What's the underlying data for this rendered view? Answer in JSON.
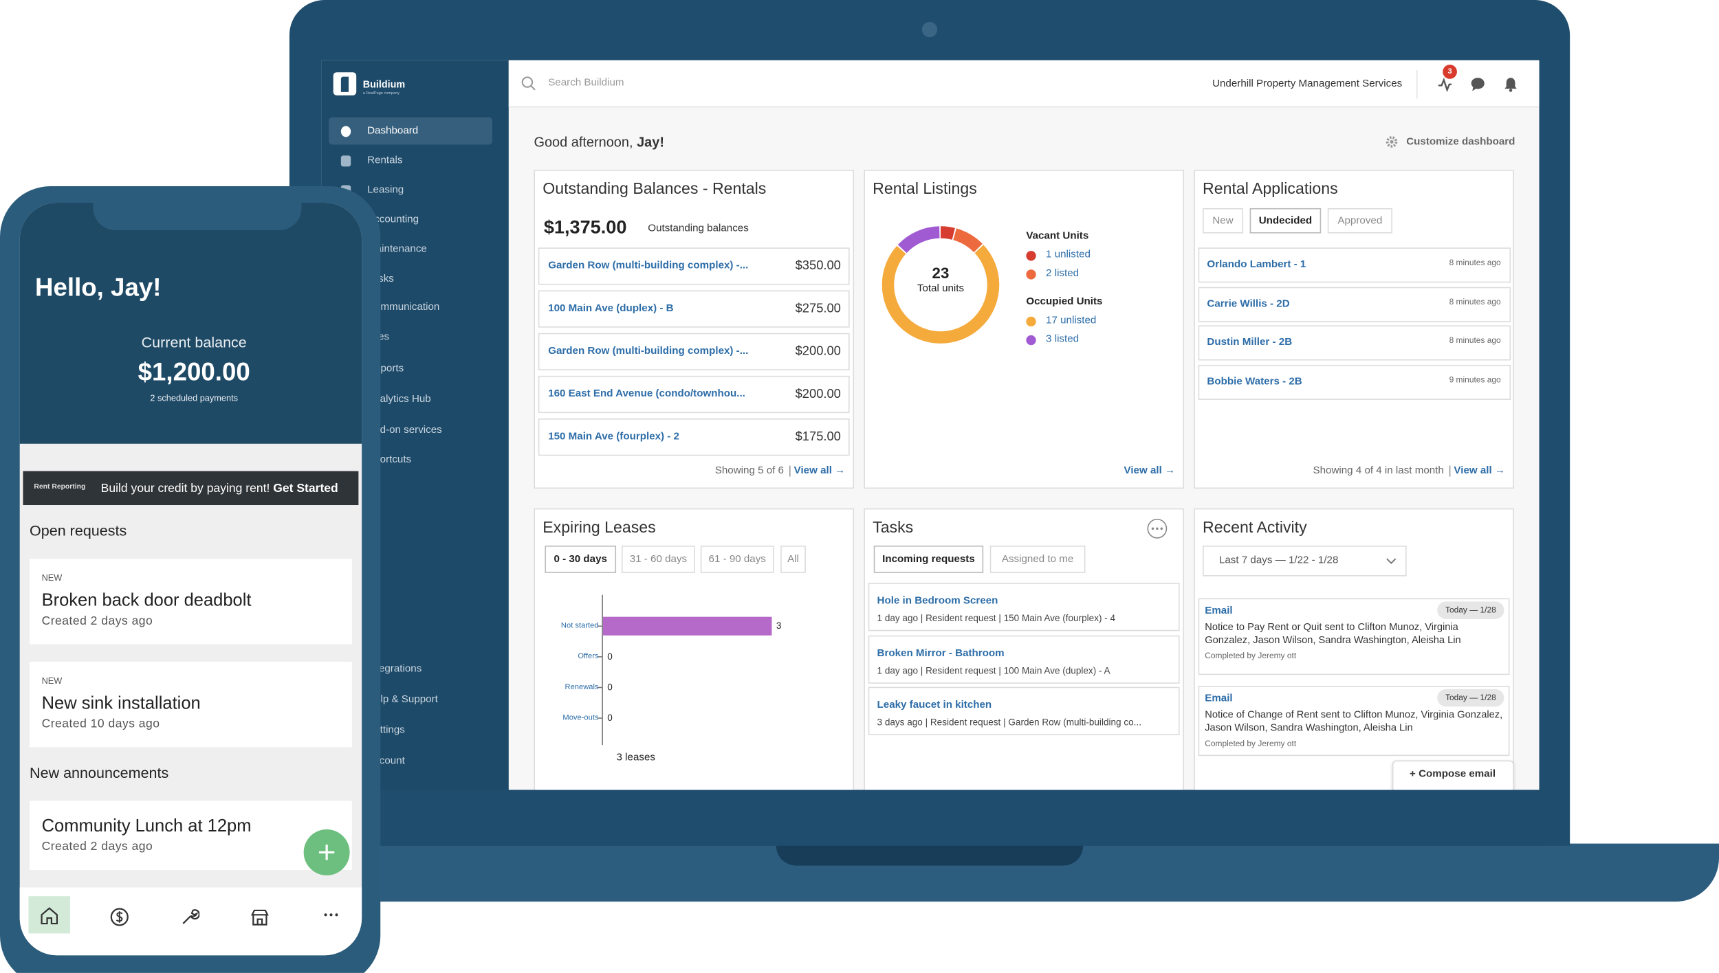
{
  "laptop": {
    "sidebar": {
      "logo": "Buildium",
      "logo_sub": "a RealPage company",
      "nav": [
        "Dashboard",
        "Rentals",
        "Leasing",
        "Accounting",
        "Maintenance",
        "Tasks",
        "Communication",
        "Files",
        "Reports",
        "Analytics Hub",
        "Add-on services",
        "Shortcuts"
      ],
      "nav_bottom": [
        "Integrations",
        "Help & Support",
        "Settings",
        "Account"
      ]
    },
    "header": {
      "search_placeholder": "Search Buildium",
      "company": "Underhill Property Management Services",
      "notification_count": 3
    },
    "greeting": {
      "text": "Good afternoon, ",
      "name": "Jay!"
    },
    "customize": "Customize dashboard",
    "outstanding": {
      "title": "Outstanding Balances - Rentals",
      "total": "$1,375.00",
      "total_label": "Outstanding balances",
      "rows": [
        {
          "name": "Garden Row (multi-building complex) -...",
          "amount": "$350.00"
        },
        {
          "name": "100 Main Ave (duplex) - B",
          "amount": "$275.00"
        },
        {
          "name": "Garden Row (multi-building complex) -...",
          "amount": "$200.00"
        },
        {
          "name": "160 East End Avenue (condo/townhou...",
          "amount": "$200.00"
        },
        {
          "name": "150 Main Ave (fourplex) - 2",
          "amount": "$175.00"
        }
      ],
      "footer": "Showing 5 of 6",
      "link": "View all →"
    },
    "listings": {
      "title": "Rental Listings",
      "total": 23,
      "total_label": "Total units",
      "groups": [
        {
          "name": "Vacant Units",
          "items": [
            {
              "count": 1,
              "label": "unlisted",
              "color": "#d63c2f"
            },
            {
              "count": 2,
              "label": "listed",
              "color": "#ec6a3e"
            }
          ]
        },
        {
          "name": "Occupied Units",
          "items": [
            {
              "count": 17,
              "label": "unlisted",
              "color": "#f5aa3c"
            },
            {
              "count": 3,
              "label": "listed",
              "color": "#a05bd3"
            }
          ]
        }
      ],
      "link": "View all →"
    },
    "applications": {
      "title": "Rental Applications",
      "tabs": [
        "New",
        "Undecided",
        "Approved"
      ],
      "rows": [
        {
          "name": "Orlando Lambert - 1",
          "time": "8 minutes ago"
        },
        {
          "name": "Carrie Willis - 2D",
          "time": "8 minutes ago"
        },
        {
          "name": "Dustin Miller - 2B",
          "time": "8 minutes ago"
        },
        {
          "name": "Bobbie Waters - 2B",
          "time": "9 minutes ago"
        }
      ],
      "footer": "Showing 4 of 4 in last month",
      "link": "View all →"
    },
    "leases": {
      "title": "Expiring Leases",
      "tabs": [
        "0 - 30 days",
        "31 - 60 days",
        "61 - 90 days",
        "All"
      ],
      "chart": {
        "categories": [
          "Not started",
          "Offers",
          "Renewals",
          "Move-outs"
        ],
        "values": [
          3,
          0,
          0,
          0
        ],
        "color": "#b569c9"
      },
      "total_label": "3 leases"
    },
    "tasks": {
      "title": "Tasks",
      "tabs": [
        "Incoming requests",
        "Assigned to me"
      ],
      "items": [
        {
          "title": "Hole in Bedroom Screen",
          "meta": "1 day ago | Resident request | 150 Main Ave (fourplex) - 4"
        },
        {
          "title": "Broken Mirror - Bathroom",
          "meta": "1 day ago | Resident request | 100 Main Ave (duplex) - A"
        },
        {
          "title": "Leaky faucet in kitchen",
          "meta": "3 days ago | Resident request | Garden Row (multi-building co..."
        }
      ]
    },
    "activity": {
      "title": "Recent Activity",
      "range": "Last 7 days — 1/22 - 1/28",
      "items": [
        {
          "type": "Email",
          "date": "Today — 1/28",
          "body": "Notice to Pay Rent or Quit sent to Clifton Munoz, Virginia Gonzalez, Jason Wilson, Sandra Washington, Aleisha Lin",
          "completed": "Completed by Jeremy ott"
        },
        {
          "type": "Email",
          "date": "Today — 1/28",
          "body": "Notice of Change of Rent sent to Clifton Munoz, Virginia Gonzalez, Jason Wilson, Sandra Washington, Aleisha Lin",
          "completed": "Completed by Jeremy ott"
        }
      ],
      "compose": "+ Compose email"
    }
  },
  "phone": {
    "greeting": "Hello, Jay!",
    "balance_label": "Current balance",
    "balance": "$1,200.00",
    "scheduled": "2 scheduled payments",
    "banner": {
      "tag": "Rent Reporting",
      "text": "Build your credit by paying rent! ",
      "cta": "Get Started"
    },
    "open_requests": {
      "title": "Open requests",
      "items": [
        {
          "badge": "NEW",
          "title": "Broken back door deadbolt",
          "created": "Created 2 days ago"
        },
        {
          "badge": "NEW",
          "title": "New sink installation",
          "created": "Created 10 days ago"
        }
      ]
    },
    "announcements": {
      "title": "New announcements",
      "items": [
        {
          "title": "Community Lunch at 12pm",
          "created": "Created 2 days ago"
        }
      ]
    }
  }
}
